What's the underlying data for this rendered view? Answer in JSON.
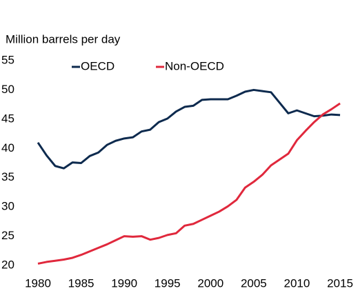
{
  "chart_data": {
    "type": "line",
    "ylabel": "Million barrels per day",
    "x": [
      1980,
      1981,
      1982,
      1983,
      1984,
      1985,
      1986,
      1987,
      1988,
      1989,
      1990,
      1991,
      1992,
      1993,
      1994,
      1995,
      1996,
      1997,
      1998,
      1999,
      2000,
      2001,
      2002,
      2003,
      2004,
      2005,
      2006,
      2007,
      2008,
      2009,
      2010,
      2011,
      2012,
      2013,
      2014,
      2015
    ],
    "series": [
      {
        "name": "OECD",
        "color": "#0d2a4e",
        "values": [
          41.0,
          38.8,
          37.0,
          36.6,
          37.6,
          37.5,
          38.7,
          39.3,
          40.6,
          41.3,
          41.7,
          41.9,
          42.9,
          43.2,
          44.5,
          45.1,
          46.3,
          47.1,
          47.3,
          48.3,
          48.4,
          48.4,
          48.4,
          49.0,
          49.7,
          50.0,
          49.8,
          49.6,
          47.8,
          46.0,
          46.5,
          46.0,
          45.5,
          45.6,
          45.8,
          45.7
        ]
      },
      {
        "name": "Non-OECD",
        "color": "#e0283c",
        "values": [
          20.3,
          20.6,
          20.8,
          21.0,
          21.3,
          21.8,
          22.4,
          23.0,
          23.6,
          24.3,
          25.0,
          24.9,
          25.0,
          24.4,
          24.7,
          25.2,
          25.5,
          26.8,
          27.1,
          27.8,
          28.5,
          29.2,
          30.1,
          31.2,
          33.3,
          34.3,
          35.5,
          37.1,
          38.1,
          39.1,
          41.4,
          43.0,
          44.5,
          45.8,
          46.7,
          47.7
        ]
      }
    ],
    "xlim": [
      1980,
      2015
    ],
    "xticks": [
      1980,
      1985,
      1990,
      1995,
      2000,
      2005,
      2010,
      2015
    ],
    "ylim": [
      20,
      55
    ],
    "yticks": [
      20,
      25,
      30,
      35,
      40,
      45,
      50,
      55
    ],
    "grid": false
  }
}
